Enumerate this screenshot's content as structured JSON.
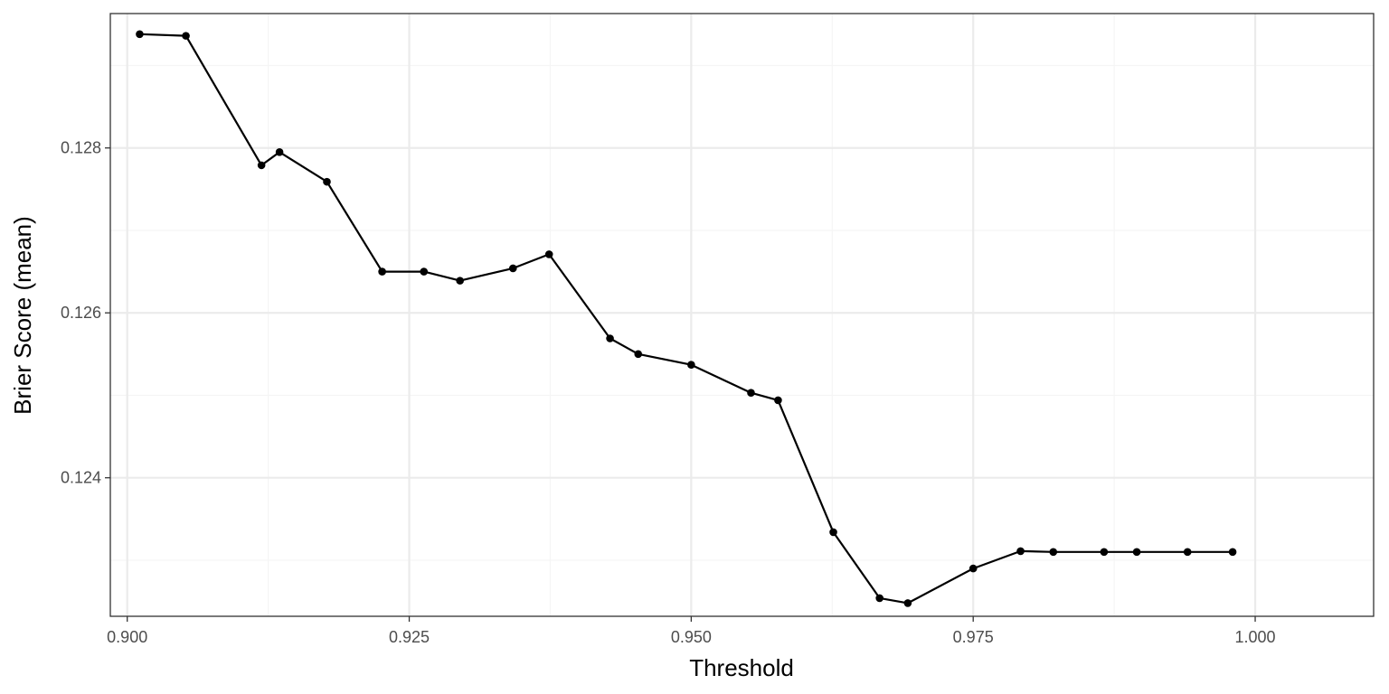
{
  "chart_data": {
    "type": "line",
    "title": "",
    "xlabel": "Threshold",
    "ylabel": "Brier Score (mean)",
    "xlim": [
      0.8985,
      1.0105
    ],
    "ylim": [
      0.12232,
      0.12963
    ],
    "x_ticks": [
      0.9,
      0.925,
      0.95,
      0.975,
      1.0
    ],
    "x_tick_labels": [
      "0.900",
      "0.925",
      "0.950",
      "0.975",
      "1.000"
    ],
    "y_ticks": [
      0.124,
      0.126,
      0.128
    ],
    "y_tick_labels": [
      "0.124",
      "0.126",
      "0.128"
    ],
    "grid": true,
    "legend": "none",
    "colors": {
      "line": "#000000",
      "grid_major": "#ebebeb",
      "grid_minor": "#f5f5f5",
      "panel_border": "#333333"
    },
    "series": [
      {
        "x": [
          0.9011,
          0.9052,
          0.9119,
          0.9135,
          0.9177,
          0.9226,
          0.9263,
          0.9295,
          0.9342,
          0.9374,
          0.9428,
          0.9453,
          0.95,
          0.9553,
          0.9577,
          0.9626,
          0.9667,
          0.9692,
          0.975,
          0.9792,
          0.9821,
          0.9866,
          0.9895,
          0.994,
          0.998
        ],
        "y": [
          0.12938,
          0.12936,
          0.12779,
          0.12795,
          0.12759,
          0.1265,
          0.1265,
          0.12639,
          0.12654,
          0.12671,
          0.12569,
          0.1255,
          0.12537,
          0.12503,
          0.12494,
          0.12334,
          0.12254,
          0.12248,
          0.1229,
          0.12311,
          0.1231,
          0.1231,
          0.1231,
          0.1231,
          0.1231
        ]
      }
    ]
  }
}
